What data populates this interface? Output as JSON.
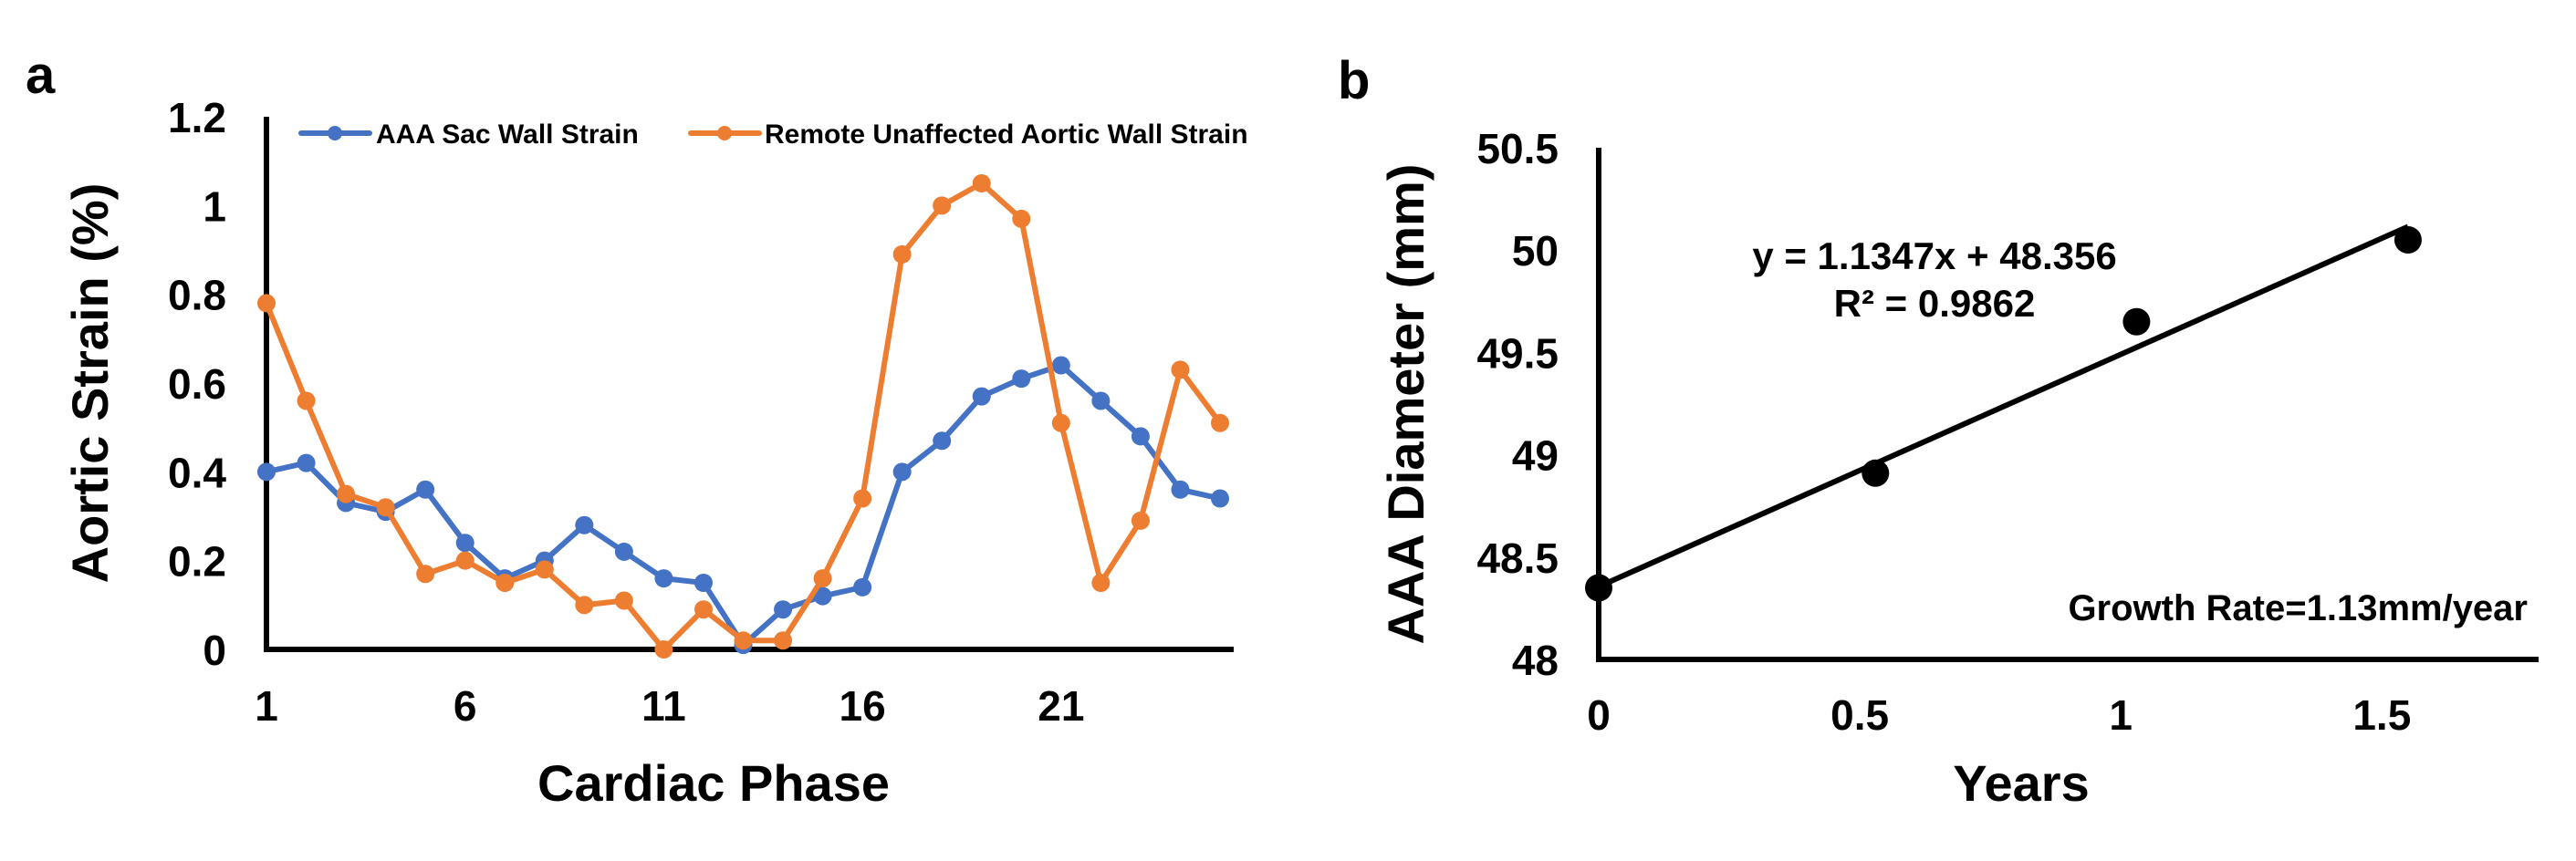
{
  "chart_data": [
    {
      "panel_label": "a",
      "type": "line",
      "title": "",
      "xlabel": "Cardiac Phase",
      "ylabel": "Aortic Strain (%)",
      "xlim": [
        1,
        25
      ],
      "ylim": [
        0,
        1.2
      ],
      "x_ticks": [
        1,
        6,
        11,
        16,
        21
      ],
      "y_ticks": [
        0,
        0.2,
        0.4,
        0.6,
        0.8,
        1,
        1.2
      ],
      "y_tick_labels": [
        "0",
        "0.2",
        "0.4",
        "0.6",
        "0.8",
        "1",
        "1.2"
      ],
      "legend_position": "top",
      "x": [
        1,
        2,
        3,
        4,
        5,
        6,
        7,
        8,
        9,
        10,
        11,
        12,
        13,
        14,
        15,
        16,
        17,
        18,
        19,
        20,
        21,
        22,
        23,
        24,
        25
      ],
      "series": [
        {
          "name": "AAA Sac Wall Strain",
          "color": "#4472C4",
          "values": [
            0.4,
            0.42,
            0.33,
            0.31,
            0.36,
            0.24,
            0.16,
            0.2,
            0.28,
            0.22,
            0.16,
            0.15,
            0.01,
            0.09,
            0.12,
            0.14,
            0.4,
            0.47,
            0.57,
            0.61,
            0.64,
            0.56,
            0.48,
            0.36,
            0.34
          ]
        },
        {
          "name": "Remote Unaffected Aortic Wall Strain",
          "color": "#ED7D31",
          "values": [
            0.78,
            0.56,
            0.35,
            0.32,
            0.17,
            0.2,
            0.15,
            0.18,
            0.1,
            0.11,
            0.0,
            0.09,
            0.02,
            0.02,
            0.16,
            0.34,
            0.89,
            1.0,
            1.05,
            0.97,
            0.51,
            0.15,
            0.29,
            0.63,
            0.51
          ]
        }
      ]
    },
    {
      "panel_label": "b",
      "type": "scatter",
      "title": "",
      "xlabel": "Years",
      "ylabel": "AAA Diameter (mm)",
      "xlim": [
        0,
        1.8
      ],
      "ylim": [
        48,
        50.5
      ],
      "x_ticks": [
        0,
        0.5,
        1,
        1.5
      ],
      "x_tick_labels": [
        "0",
        "0.5",
        "1",
        "1.5"
      ],
      "y_ticks": [
        48,
        48.5,
        49,
        49.5,
        50,
        50.5
      ],
      "y_tick_labels": [
        "48",
        "48.5",
        "49",
        "49.5",
        "50",
        "50.5"
      ],
      "color": "#000000",
      "points": [
        {
          "x": 0,
          "y": 48.35
        },
        {
          "x": 0.53,
          "y": 48.91
        },
        {
          "x": 1.03,
          "y": 49.65
        },
        {
          "x": 1.55,
          "y": 50.05
        }
      ],
      "trendline": {
        "slope": 1.1347,
        "intercept": 48.356,
        "x_range": [
          0,
          1.55
        ]
      },
      "equation_text": "y = 1.1347x + 48.356",
      "r2_text": "R² = 0.9862",
      "annotation": "Growth Rate=1.13mm/year"
    }
  ]
}
